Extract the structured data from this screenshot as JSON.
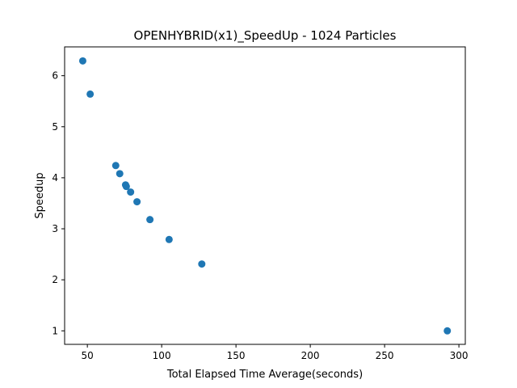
{
  "chart_data": {
    "type": "scatter",
    "title": "OPENHYBRID(x1)_SpeedUp - 1024 Particles",
    "xlabel": "Total Elapsed Time Average(seconds)",
    "ylabel": "Speedup",
    "xlim": [
      34.7,
      304.3
    ],
    "ylim": [
      0.735,
      6.565
    ],
    "xticks": [
      50,
      100,
      150,
      200,
      250,
      300
    ],
    "yticks": [
      1,
      2,
      3,
      4,
      5,
      6
    ],
    "grid": false,
    "legend": false,
    "marker_color": "#1f77b4",
    "points": [
      {
        "x": 46.9,
        "y": 6.29
      },
      {
        "x": 51.9,
        "y": 5.64
      },
      {
        "x": 69.1,
        "y": 4.24
      },
      {
        "x": 71.8,
        "y": 4.08
      },
      {
        "x": 75.7,
        "y": 3.86
      },
      {
        "x": 76.2,
        "y": 3.83
      },
      {
        "x": 79.1,
        "y": 3.72
      },
      {
        "x": 83.4,
        "y": 3.53
      },
      {
        "x": 92.1,
        "y": 3.18
      },
      {
        "x": 105.0,
        "y": 2.79
      },
      {
        "x": 127.0,
        "y": 2.31
      },
      {
        "x": 292.2,
        "y": 1.0
      }
    ]
  }
}
